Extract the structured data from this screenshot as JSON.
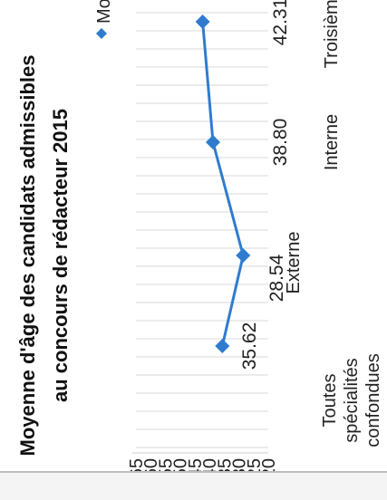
{
  "chart_data": {
    "type": "line",
    "title_line1": "Moyenne d'âge des candidats admissibles",
    "title_line2": "au concours de rédacteur 2015",
    "legend": "Moyenne d'âge (en année)",
    "categories": [
      [
        "Toutes",
        "spécialités",
        "confondues"
      ],
      [
        "Externe"
      ],
      [
        "Interne"
      ],
      [
        "Troisième v"
      ]
    ],
    "series": [
      {
        "name": "Moyenne d'âge (en année)",
        "values": [
          35.62,
          28.54,
          38.8,
          42.31
        ],
        "labels": [
          "35.62",
          "28.54",
          "38.80",
          "42.31"
        ],
        "color": "#2f7ccf"
      }
    ],
    "yticks": [
      "20",
      "25",
      "30",
      "35",
      "40",
      "45",
      "50",
      "55",
      "60",
      "65"
    ],
    "ylim": [
      20,
      65
    ],
    "grid": "vertical",
    "legend_position": "top"
  }
}
